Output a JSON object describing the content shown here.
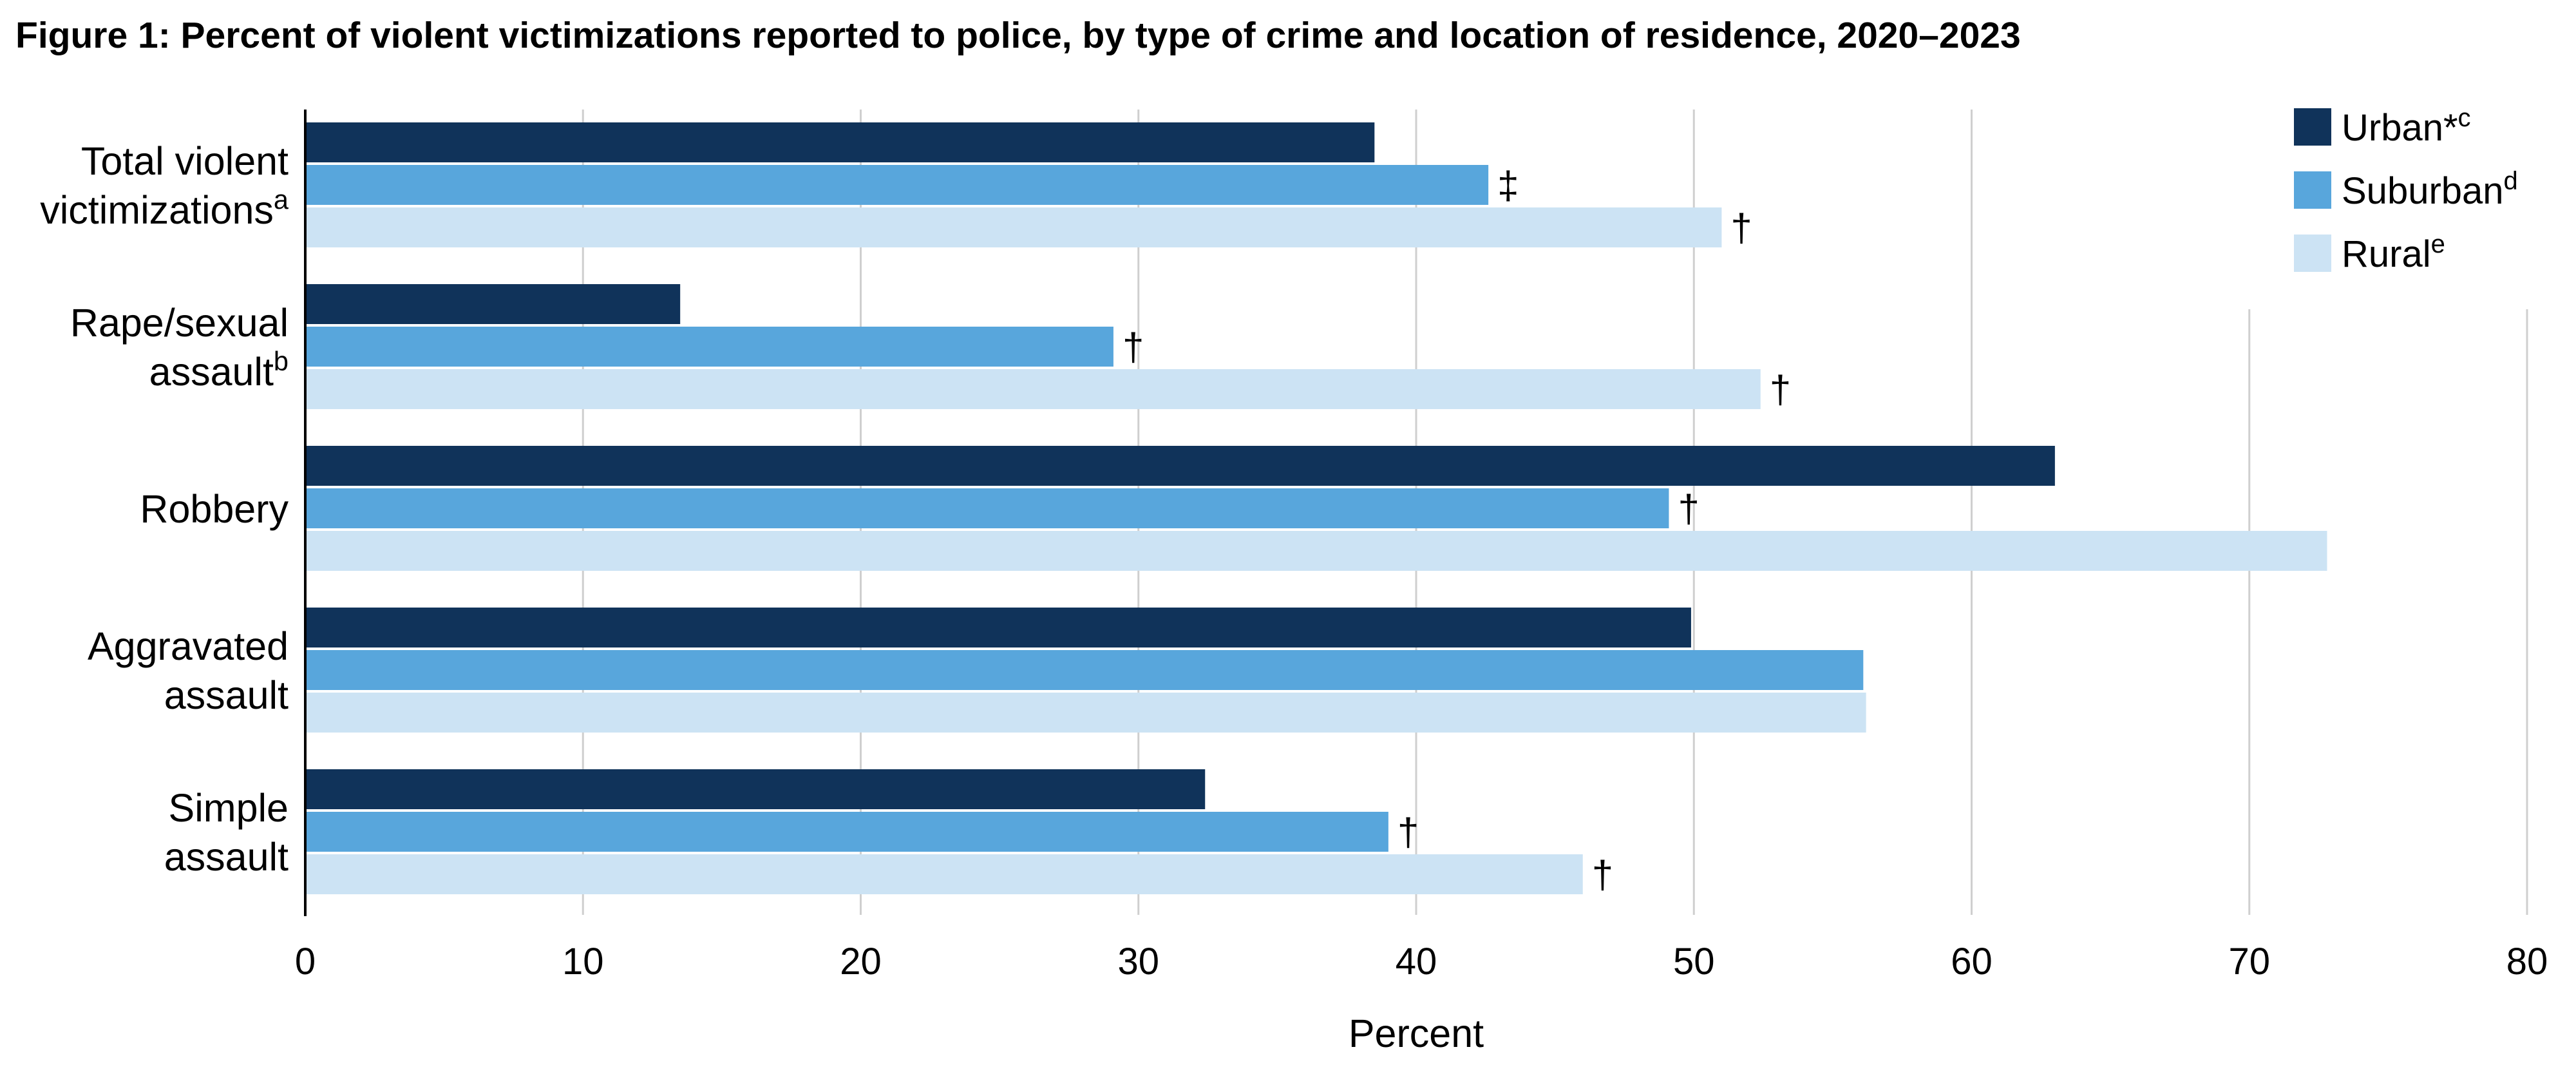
{
  "title": "Figure 1: Percent of violent victimizations reported to police, by type of crime and location of residence, 2020–2023",
  "chart_data": {
    "type": "bar",
    "orientation": "horizontal",
    "categories": [
      {
        "lines": [
          {
            "text": "Total violent",
            "sup": ""
          },
          {
            "text": "victimizations",
            "sup": "a"
          }
        ]
      },
      {
        "lines": [
          {
            "text": "Rape/sexual",
            "sup": ""
          },
          {
            "text": "assault",
            "sup": "b"
          }
        ]
      },
      {
        "lines": [
          {
            "text": "Robbery",
            "sup": ""
          }
        ]
      },
      {
        "lines": [
          {
            "text": "Aggravated",
            "sup": ""
          },
          {
            "text": "assault",
            "sup": ""
          }
        ]
      },
      {
        "lines": [
          {
            "text": "Simple",
            "sup": ""
          },
          {
            "text": "assault",
            "sup": ""
          }
        ]
      }
    ],
    "series": [
      {
        "name": "Urban*",
        "sup": "c",
        "color": "#10335a",
        "values": [
          38.5,
          13.5,
          63.0,
          49.9,
          32.4
        ],
        "marks": [
          "",
          "",
          "",
          "",
          ""
        ]
      },
      {
        "name": "Suburban",
        "sup": "d",
        "color": "#58a6dc",
        "values": [
          42.6,
          29.1,
          49.1,
          56.1,
          39.0
        ],
        "marks": [
          "‡",
          "†",
          "†",
          "",
          "†"
        ]
      },
      {
        "name": "Rural",
        "sup": "e",
        "color": "#cce3f4",
        "values": [
          51.0,
          52.4,
          72.8,
          56.2,
          46.0
        ],
        "marks": [
          "†",
          "†",
          "",
          "",
          "†"
        ]
      }
    ],
    "xlabel": "Percent",
    "ylabel": "",
    "xlim": [
      0,
      80
    ],
    "xticks": [
      0,
      10,
      20,
      30,
      40,
      50,
      60,
      70,
      80
    ],
    "grid": "vertical",
    "legend": "top-right"
  }
}
